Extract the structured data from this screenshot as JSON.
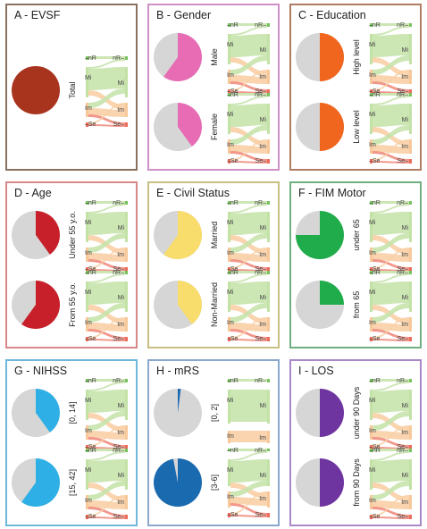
{
  "colors": {
    "grey": "#d6d6d6",
    "nR": "#78c25e",
    "Mi": "#c3e2a6",
    "Im": "#f7c89a",
    "Se": "#ec6b5a",
    "flow_green": "#c6e3ac",
    "flow_orange": "#f8cfa5",
    "flow_red": "#f08c7e"
  },
  "states": [
    "nR",
    "Mi",
    "Im",
    "Se"
  ],
  "panels": [
    {
      "id": "A",
      "title": "A - EVSF",
      "border": "#8a7060",
      "groups": [
        {
          "label": "Total",
          "color": "#a8341e",
          "fraction": 1.0
        }
      ]
    },
    {
      "id": "B",
      "title": "B - Gender",
      "border": "#cf90c8",
      "groups": [
        {
          "label": "Male",
          "color": "#e76cb4",
          "fraction": 0.6
        },
        {
          "label": "Female",
          "color": "#e76cb4",
          "fraction": 0.4
        }
      ]
    },
    {
      "id": "C",
      "title": "C - Education",
      "border": "#b07c64",
      "groups": [
        {
          "label": "High level",
          "color": "#f0661e",
          "fraction": 0.5
        },
        {
          "label": "Low level",
          "color": "#f0661e",
          "fraction": 0.5
        }
      ]
    },
    {
      "id": "D",
      "title": "D - Age",
      "border": "#d88888",
      "groups": [
        {
          "label": "Under 55 y.o.",
          "color": "#c8202a",
          "fraction": 0.4
        },
        {
          "label": "From 55 y.o.",
          "color": "#c8202a",
          "fraction": 0.6
        }
      ]
    },
    {
      "id": "E",
      "title": "E - Civil Status",
      "border": "#c8c080",
      "groups": [
        {
          "label": "Married",
          "color": "#f8dc6c",
          "fraction": 0.6
        },
        {
          "label": "Non-Married",
          "color": "#f8dc6c",
          "fraction": 0.4
        }
      ]
    },
    {
      "id": "F",
      "title": "F - FIM Motor",
      "border": "#70b080",
      "groups": [
        {
          "label": "under 65",
          "color": "#20ac4a",
          "fraction": 0.75
        },
        {
          "label": "from 65",
          "color": "#20ac4a",
          "fraction": 0.25
        }
      ]
    },
    {
      "id": "G",
      "title": "G - NIHSS",
      "border": "#6eb8dc",
      "groups": [
        {
          "label": "[0, 14]",
          "color": "#2eb0e6",
          "fraction": 0.4
        },
        {
          "label": "[15, 42]",
          "color": "#2eb0e6",
          "fraction": 0.6
        }
      ]
    },
    {
      "id": "H",
      "title": "H - mRS",
      "border": "#8aa8cc",
      "groups": [
        {
          "label": "[0, 2]",
          "color": "#1a6ab0",
          "fraction": 0.02
        },
        {
          "label": "[3-6]",
          "color": "#1a6ab0",
          "fraction": 0.97
        }
      ]
    },
    {
      "id": "I",
      "title": "I - LOS",
      "border": "#a888c8",
      "groups": [
        {
          "label": "under 90 Days",
          "color": "#6e34a0",
          "fraction": 0.5
        },
        {
          "label": "from 90 Days",
          "color": "#6e34a0",
          "fraction": 0.5
        }
      ]
    }
  ]
}
